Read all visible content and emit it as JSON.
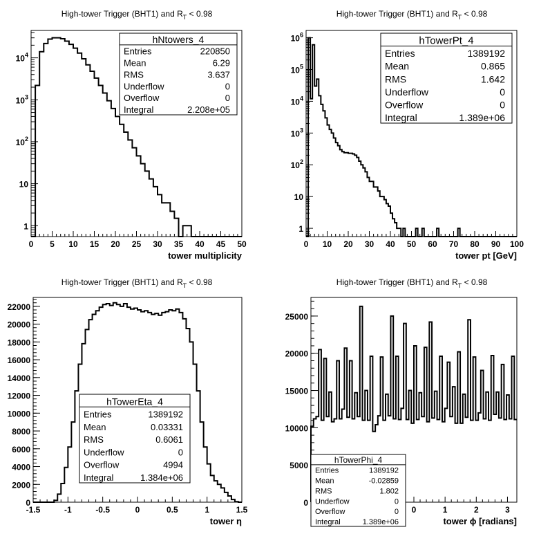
{
  "chart_data": [
    {
      "id": "ntowers",
      "type": "histogram",
      "title": "High-tower Trigger (BHT1) and R",
      "title_sub": "T",
      "title_tail": " < 0.98",
      "xlabel": "tower multiplicity",
      "ylabel": "",
      "scale_y": "log",
      "xlim": [
        0,
        50
      ],
      "ylim": [
        0.55,
        45000
      ],
      "x_ticks": [
        0,
        5,
        10,
        15,
        20,
        25,
        30,
        35,
        40,
        45,
        50
      ],
      "y_ticks": [
        {
          "value": 1,
          "label": "1"
        },
        {
          "value": 10,
          "label": "10"
        },
        {
          "value": 100,
          "label": "10",
          "exp": "2"
        },
        {
          "value": 1000,
          "label": "10",
          "exp": "3"
        },
        {
          "value": 10000,
          "label": "10",
          "exp": "4"
        }
      ],
      "bin_start": 0,
      "bin_width": 1,
      "values": [
        0,
        2200,
        14000,
        22000,
        28000,
        30000,
        30000,
        28500,
        25000,
        21000,
        17000,
        13000,
        9500,
        6800,
        4800,
        3300,
        2200,
        1450,
        950,
        620,
        400,
        260,
        170,
        110,
        72,
        46,
        30,
        20,
        13,
        8.5,
        5.5,
        3.5,
        3.5,
        2.2,
        1.5,
        0.5,
        1,
        1,
        0.5,
        0.5,
        0,
        0,
        0,
        0,
        0,
        0,
        0,
        0,
        0,
        0
      ],
      "stats": {
        "title": "hNtowers_4",
        "rows": [
          {
            "label": "Entries",
            "value": "220850"
          },
          {
            "label": "Mean",
            "value": "6.29"
          },
          {
            "label": "RMS",
            "value": "3.637"
          },
          {
            "label": "Underflow",
            "value": "0"
          },
          {
            "label": "Overflow",
            "value": "0"
          },
          {
            "label": "Integral",
            "value": "2.208e+05"
          }
        ]
      }
    },
    {
      "id": "towerpt",
      "type": "histogram",
      "title": "High-tower Trigger (BHT1) and R",
      "title_sub": "T",
      "title_tail": " < 0.98",
      "xlabel": "tower pt [GeV]",
      "ylabel": "",
      "scale_y": "log",
      "xlim": [
        0,
        100
      ],
      "ylim": [
        0.55,
        1700000
      ],
      "x_ticks": [
        0,
        10,
        20,
        30,
        40,
        50,
        60,
        70,
        80,
        90,
        100
      ],
      "y_ticks": [
        {
          "value": 1,
          "label": "1"
        },
        {
          "value": 10,
          "label": "10"
        },
        {
          "value": 100,
          "label": "10",
          "exp": "2"
        },
        {
          "value": 1000,
          "label": "10",
          "exp": "3"
        },
        {
          "value": 10000,
          "label": "10",
          "exp": "4"
        },
        {
          "value": 100000,
          "label": "10",
          "exp": "5"
        },
        {
          "value": 1000000,
          "label": "10",
          "exp": "6"
        }
      ],
      "bin_start": 0,
      "bin_width": 1,
      "values": [
        0,
        1000000,
        12000,
        600000,
        30000,
        50000,
        15000,
        8000,
        5000,
        3000,
        1800,
        1300,
        1000,
        700,
        500,
        400,
        300,
        260,
        240,
        240,
        230,
        230,
        220,
        200,
        170,
        130,
        100,
        80,
        60,
        40,
        30,
        30,
        20,
        20,
        15,
        10,
        10,
        8,
        6,
        5,
        3,
        2,
        1.5,
        1,
        1,
        0.5,
        1,
        0.5,
        0.5,
        0.5,
        0.5,
        0.5,
        1,
        0.5,
        0.5,
        1,
        0.5,
        0.5,
        0.5,
        0.5,
        0.5,
        0.5,
        1,
        0.5,
        0.5,
        0.5,
        0.5,
        0.5,
        0.5,
        0.5,
        0.5,
        0.5,
        1,
        0.5,
        0.5,
        0.5,
        0.5,
        0.5,
        0.5,
        0.5,
        0.5,
        0.5,
        0.5,
        0.5,
        0.5,
        0.5,
        0.5,
        0.5,
        0.5,
        0.5,
        0.5,
        0.5,
        0.5,
        0.5,
        0.5,
        0.5,
        0.5,
        0.5,
        0.5,
        0.5
      ],
      "stats": {
        "title": "hTowerPt_4",
        "rows": [
          {
            "label": "Entries",
            "value": "1389192"
          },
          {
            "label": "Mean",
            "value": "0.865"
          },
          {
            "label": "RMS",
            "value": "1.642"
          },
          {
            "label": "Underflow",
            "value": "0"
          },
          {
            "label": "Overflow",
            "value": "0"
          },
          {
            "label": "Integral",
            "value": "1.389e+06"
          }
        ]
      }
    },
    {
      "id": "towereta",
      "type": "histogram",
      "title": "High-tower Trigger (BHT1) and R",
      "title_sub": "T",
      "title_tail": " < 0.98",
      "xlabel": "tower η",
      "ylabel": "",
      "scale_y": "linear",
      "xlim": [
        -1.5,
        1.5
      ],
      "ylim": [
        0,
        23000
      ],
      "x_ticks": [
        {
          "value": -1.5,
          "label": "-1.5"
        },
        {
          "value": -1,
          "label": "-1"
        },
        {
          "value": -0.5,
          "label": "-0.5"
        },
        {
          "value": 0,
          "label": "0"
        },
        {
          "value": 0.5,
          "label": "0.5"
        },
        {
          "value": 1,
          "label": "1"
        },
        {
          "value": 1.5,
          "label": "1.5"
        }
      ],
      "y_ticks": [
        0,
        2000,
        4000,
        6000,
        8000,
        10000,
        12000,
        14000,
        16000,
        18000,
        20000,
        22000
      ],
      "bin_start": -1.5,
      "bin_width": 0.05,
      "values": [
        0,
        0,
        0,
        0,
        0,
        0,
        200,
        900,
        2100,
        3900,
        6200,
        9000,
        12500,
        15500,
        17800,
        19400,
        20500,
        21100,
        21500,
        21900,
        22200,
        22300,
        22100,
        22400,
        22200,
        22000,
        22300,
        21900,
        21700,
        21800,
        21600,
        21400,
        21500,
        21300,
        21100,
        21200,
        21000,
        21300,
        21400,
        21600,
        21500,
        21700,
        21300,
        20600,
        19500,
        18000,
        15500,
        12500,
        9000,
        6200,
        4300,
        3000,
        2400,
        2000,
        1600,
        1100,
        700,
        300,
        60,
        0
      ],
      "stats": {
        "title": "hTowerEta_4",
        "rows": [
          {
            "label": "Entries",
            "value": "1389192"
          },
          {
            "label": "Mean",
            "value": "0.03331"
          },
          {
            "label": "RMS",
            "value": "0.6061"
          },
          {
            "label": "Underflow",
            "value": "0"
          },
          {
            "label": "Overflow",
            "value": "4994"
          },
          {
            "label": "Integral",
            "value": "1.384e+06"
          }
        ]
      }
    },
    {
      "id": "towerphi",
      "type": "histogram",
      "title": "High-tower Trigger (BHT1) and R",
      "title_sub": "T",
      "title_tail": " < 0.98",
      "xlabel": "tower ϕ [radians]",
      "ylabel": "",
      "scale_y": "linear",
      "xlim": [
        -3.3,
        3.3
      ],
      "ylim": [
        0,
        27500
      ],
      "x_ticks": [
        {
          "value": 0,
          "label": "0"
        },
        {
          "value": 1,
          "label": "1"
        },
        {
          "value": 2,
          "label": "2"
        },
        {
          "value": 3,
          "label": "3"
        }
      ],
      "y_ticks": [
        0,
        5000,
        10000,
        15000,
        20000,
        25000
      ],
      "bin_start": -3.3,
      "bin_width": 0.0825,
      "values": [
        10200,
        11200,
        11500,
        20500,
        11000,
        19300,
        11500,
        14800,
        10800,
        11200,
        19000,
        11200,
        12500,
        20700,
        11400,
        19000,
        11200,
        14700,
        11500,
        26300,
        11000,
        15000,
        11000,
        19600,
        9500,
        10400,
        11600,
        19500,
        11000,
        14500,
        11600,
        25000,
        11200,
        19600,
        11100,
        12600,
        24000,
        11100,
        15000,
        10600,
        21000,
        11100,
        14700,
        11500,
        20800,
        10800,
        24200,
        11300,
        14900,
        11100,
        19600,
        10800,
        12600,
        18800,
        11500,
        15500,
        10600,
        20200,
        10600,
        14500,
        11400,
        24500,
        11000,
        19500,
        11000,
        12000,
        17700,
        11200,
        14800,
        11000,
        19700,
        11800,
        14800,
        11300,
        18500,
        11100,
        14400,
        11200,
        19600,
        11100
      ],
      "stats": {
        "title": "hTowerPhi_4",
        "rows": [
          {
            "label": "Entries",
            "value": "1389192"
          },
          {
            "label": "Mean",
            "value": "-0.02859"
          },
          {
            "label": "RMS",
            "value": "1.802"
          },
          {
            "label": "Underflow",
            "value": "0"
          },
          {
            "label": "Overflow",
            "value": "0"
          },
          {
            "label": "Integral",
            "value": "1.389e+06"
          }
        ]
      }
    }
  ]
}
